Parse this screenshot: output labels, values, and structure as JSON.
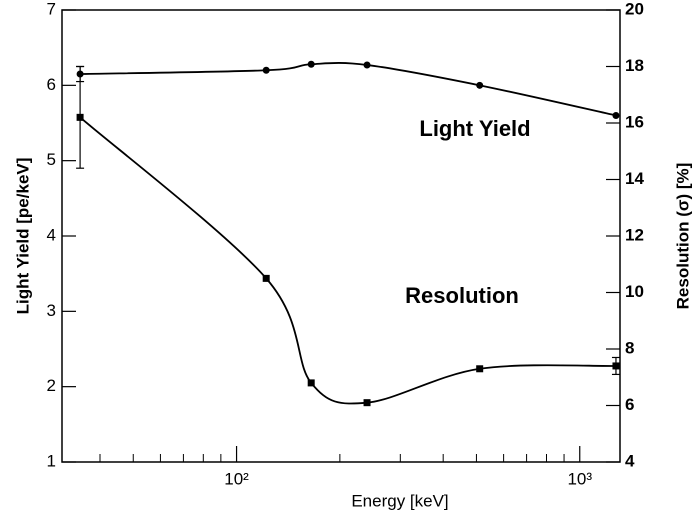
{
  "chart_data": {
    "type": "line",
    "xlabel": "Energy [keV]",
    "ylabel": "Light Yield [pe/keV]",
    "y2label": "Resolution (σ) [%]",
    "annotations": [
      "Light Yield",
      "Resolution"
    ],
    "xscale": "log",
    "xlim": [
      31,
      1310
    ],
    "xticks": [
      {
        "value": 100,
        "label": "10²"
      },
      {
        "value": 1000,
        "label": "10³"
      }
    ],
    "xminorticks": [
      40,
      50,
      60,
      70,
      80,
      90,
      200,
      300,
      400,
      500,
      600,
      700,
      800,
      900
    ],
    "ylim": [
      1,
      7
    ],
    "yticks": [
      1,
      2,
      3,
      4,
      5,
      6,
      7
    ],
    "y2lim": [
      4,
      20
    ],
    "y2ticks": [
      4,
      6,
      8,
      10,
      12,
      14,
      16,
      18,
      20
    ],
    "x": [
      35,
      122,
      165,
      240,
      511,
      1275
    ],
    "series": [
      {
        "name": "Light Yield",
        "color": "#000000",
        "marker": "circle",
        "values": [
          6.15,
          6.2,
          6.28,
          6.27,
          6.0,
          5.6
        ],
        "errors": [
          0.1,
          null,
          null,
          null,
          null,
          null
        ]
      },
      {
        "name": "Resolution",
        "color": "#000000",
        "marker": "square",
        "axis": "y2",
        "values": [
          16.2,
          10.5,
          6.8,
          6.1,
          7.3,
          7.4
        ],
        "errors": [
          1.8,
          null,
          null,
          null,
          null,
          0.3
        ]
      }
    ]
  }
}
